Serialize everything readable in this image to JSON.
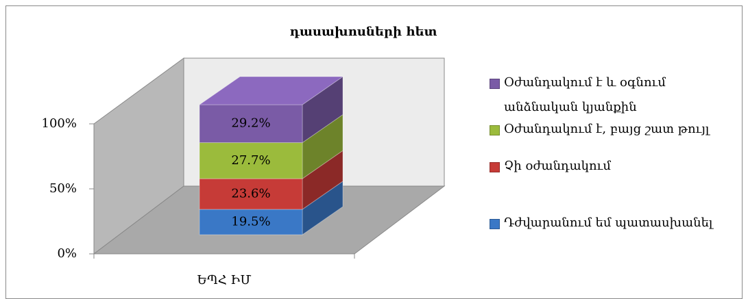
{
  "chart_data": {
    "type": "bar3d_stacked",
    "title": "դասախոսների հետ",
    "categories": [
      "ԵՊՀ ԻՄ"
    ],
    "series": [
      {
        "name": "Դժվարանում եմ պատասխանել",
        "color": "#3a78c6",
        "values": [
          19.5
        ],
        "value_labels": [
          "19.5%"
        ]
      },
      {
        "name": "Չի օժանդակում",
        "color": "#c63b37",
        "values": [
          23.6
        ],
        "value_labels": [
          "23.6%"
        ]
      },
      {
        "name": "Օժանդակում է, բայց շատ թույլ",
        "color": "#9bbb3c",
        "values": [
          27.7
        ],
        "value_labels": [
          "27.7%"
        ]
      },
      {
        "name": "Օժանդակում է և օգնում անձնական կյանքին",
        "color": "#7a5ba6",
        "values": [
          29.2
        ],
        "value_labels": [
          "29.2%"
        ]
      }
    ],
    "ylim": [
      0,
      100
    ],
    "yticks": [
      {
        "value": 0,
        "label": "0%"
      },
      {
        "value": 50,
        "label": "50%"
      },
      {
        "value": 100,
        "label": "100%"
      }
    ],
    "legend": "right"
  }
}
